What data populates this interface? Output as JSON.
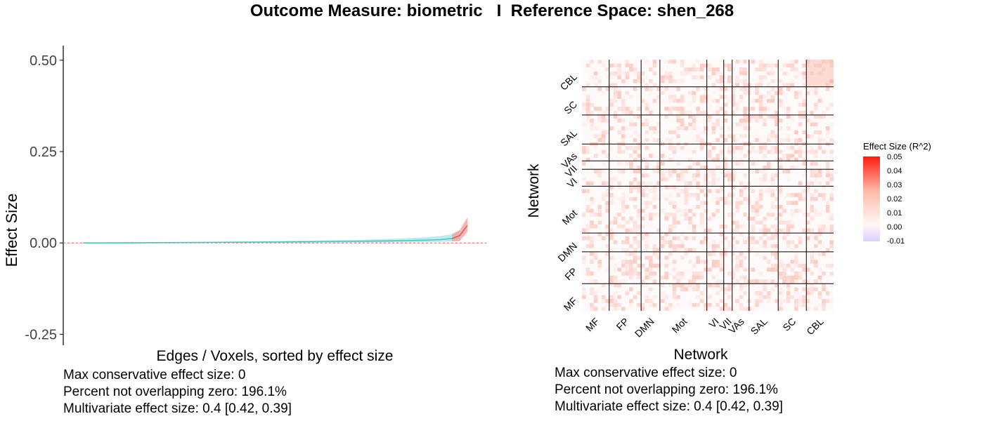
{
  "title": "Outcome Measure: biometric   I  Reference Space: shen_268",
  "colors": {
    "positive": "#f08080",
    "ci_band": "#9ee3e3",
    "line": "#48c9c0",
    "zero_line": "#e05a4e",
    "grid_line": "#000000"
  },
  "chart_data": [
    {
      "type": "line",
      "xlabel": "Edges / Voxels, sorted by effect size",
      "ylabel": "Effect Size",
      "ylim": [
        -0.28,
        0.54
      ],
      "yticks": [
        0.5,
        0.25,
        0.0,
        -0.25
      ],
      "ytick_labels": [
        "0.50",
        "0.25",
        "0.00",
        "-0.25"
      ],
      "x": [
        0,
        0.1,
        0.2,
        0.3,
        0.4,
        0.5,
        0.6,
        0.7,
        0.8,
        0.85,
        0.9,
        0.93,
        0.96,
        0.98,
        1.0
      ],
      "series": [
        {
          "values": [
            0.0,
            0.0003,
            0.0007,
            0.0012,
            0.0018,
            0.0025,
            0.0033,
            0.0042,
            0.0055,
            0.0064,
            0.0078,
            0.009,
            0.012,
            0.02,
            0.048
          ],
          "lower": [
            -0.001,
            -0.0008,
            -0.0006,
            -0.0004,
            -0.0002,
            0.0,
            0.0003,
            0.0007,
            0.0012,
            0.0016,
            0.0022,
            0.003,
            0.004,
            0.006,
            0.03
          ],
          "upper": [
            0.001,
            0.0015,
            0.0022,
            0.003,
            0.004,
            0.005,
            0.0065,
            0.0082,
            0.011,
            0.013,
            0.016,
            0.019,
            0.024,
            0.035,
            0.07
          ]
        }
      ],
      "reference_line": 0
    },
    {
      "type": "heatmap",
      "xlabel": "Network",
      "ylabel": "Network",
      "x_networks": [
        "MF",
        "FP",
        "DMN",
        "Mot",
        "VI",
        "VII",
        "VAs",
        "SAL",
        "SC",
        "CBL"
      ],
      "y_networks": [
        "CBL",
        "SC",
        "SAL",
        "VAs",
        "VII",
        "VI",
        "Mot",
        "DMN",
        "FP",
        "MF"
      ],
      "network_sizes": [
        29,
        34,
        20,
        50,
        18,
        9,
        18,
        31,
        30,
        29
      ],
      "legend_title": "Effect Size (R^2)",
      "legend_ticks": [
        "0.05",
        "0.04",
        "0.03",
        "0.02",
        "0.01",
        "0.00",
        "-0.01"
      ],
      "color_range": [
        -0.01,
        0.05
      ]
    }
  ],
  "stats": {
    "max_conservative": "Max conservative effect size: 0",
    "percent_not_overlapping": "Percent not overlapping zero: 196.1%",
    "multivariate": "Multivariate effect size: 0.4 [0.42, 0.39]"
  }
}
